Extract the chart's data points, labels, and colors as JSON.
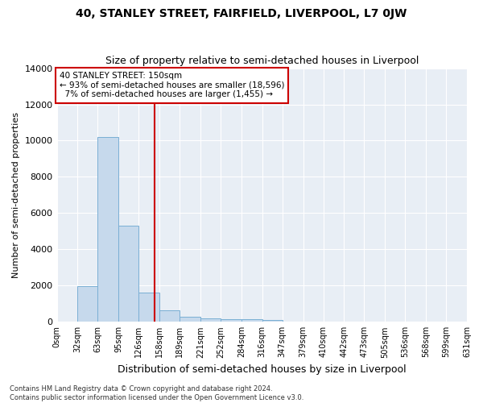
{
  "title": "40, STANLEY STREET, FAIRFIELD, LIVERPOOL, L7 0JW",
  "subtitle": "Size of property relative to semi-detached houses in Liverpool",
  "xlabel": "Distribution of semi-detached houses by size in Liverpool",
  "ylabel": "Number of semi-detached properties",
  "footnote1": "Contains HM Land Registry data © Crown copyright and database right 2024.",
  "footnote2": "Contains public sector information licensed under the Open Government Licence v3.0.",
  "property_label": "40 STANLEY STREET: 150sqm",
  "pct_smaller": 93,
  "count_smaller": 18596,
  "pct_larger": 7,
  "count_larger": 1455,
  "bin_labels": [
    "0sqm",
    "32sqm",
    "63sqm",
    "95sqm",
    "126sqm",
    "158sqm",
    "189sqm",
    "221sqm",
    "252sqm",
    "284sqm",
    "316sqm",
    "347sqm",
    "379sqm",
    "410sqm",
    "442sqm",
    "473sqm",
    "505sqm",
    "536sqm",
    "568sqm",
    "599sqm",
    "631sqm"
  ],
  "bin_edges": [
    0,
    32,
    63,
    95,
    126,
    158,
    189,
    221,
    252,
    284,
    316,
    347,
    379,
    410,
    442,
    473,
    505,
    536,
    568,
    599,
    631
  ],
  "bar_values": [
    0,
    1950,
    10200,
    5300,
    1600,
    630,
    290,
    190,
    150,
    130,
    120,
    0,
    0,
    0,
    0,
    0,
    0,
    0,
    0,
    0
  ],
  "bar_color": "#c6d9ec",
  "bar_edge_color": "#7aafd4",
  "vline_color": "#cc0000",
  "vline_x": 150,
  "ylim": [
    0,
    14000
  ],
  "yticks": [
    0,
    2000,
    4000,
    6000,
    8000,
    10000,
    12000,
    14000
  ],
  "annotation_box_color": "#cc0000",
  "bg_color": "#e8eef5"
}
